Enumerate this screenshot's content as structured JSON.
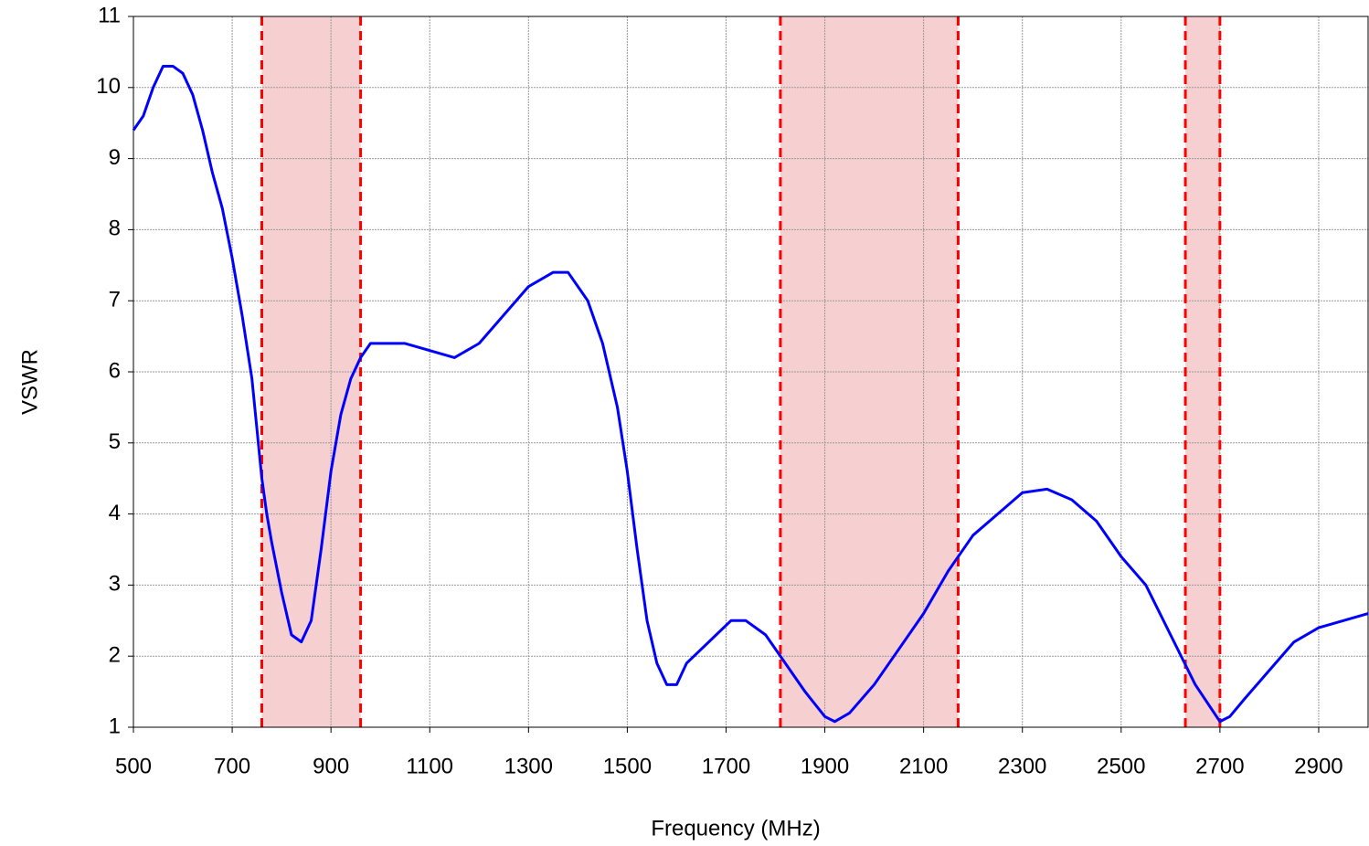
{
  "chart_data": {
    "type": "line",
    "xlabel": "Frequency (MHz)",
    "ylabel": "VSWR",
    "x": [
      500,
      520,
      540,
      560,
      580,
      600,
      620,
      640,
      660,
      680,
      700,
      720,
      740,
      760,
      770,
      780,
      800,
      820,
      840,
      860,
      880,
      900,
      920,
      940,
      960,
      980,
      1000,
      1050,
      1100,
      1150,
      1200,
      1250,
      1300,
      1350,
      1380,
      1420,
      1450,
      1480,
      1500,
      1520,
      1540,
      1560,
      1580,
      1600,
      1620,
      1650,
      1680,
      1710,
      1740,
      1780,
      1820,
      1860,
      1900,
      1920,
      1950,
      2000,
      2050,
      2100,
      2150,
      2200,
      2250,
      2300,
      2350,
      2400,
      2450,
      2500,
      2550,
      2600,
      2650,
      2700,
      2720,
      2750,
      2800,
      2850,
      2900,
      2950,
      3000
    ],
    "series": [
      {
        "name": "VSWR",
        "color": "#0000ff",
        "values": [
          9.4,
          9.6,
          10.0,
          10.3,
          10.3,
          10.2,
          9.9,
          9.4,
          8.8,
          8.3,
          7.6,
          6.8,
          5.9,
          4.5,
          4.0,
          3.6,
          2.9,
          2.3,
          2.2,
          2.5,
          3.5,
          4.6,
          5.4,
          5.9,
          6.2,
          6.4,
          6.4,
          6.4,
          6.3,
          6.2,
          6.4,
          6.8,
          7.2,
          7.4,
          7.4,
          7.0,
          6.4,
          5.5,
          4.6,
          3.5,
          2.5,
          1.9,
          1.6,
          1.6,
          1.9,
          2.1,
          2.3,
          2.5,
          2.5,
          2.3,
          1.9,
          1.5,
          1.15,
          1.08,
          1.2,
          1.6,
          2.1,
          2.6,
          3.2,
          3.7,
          4.0,
          4.3,
          4.35,
          4.2,
          3.9,
          3.4,
          3.0,
          2.3,
          1.6,
          1.08,
          1.15,
          1.4,
          1.8,
          2.2,
          2.4,
          2.5,
          2.6
        ]
      }
    ],
    "bands": [
      [
        760,
        960
      ],
      [
        1810,
        2170
      ],
      [
        2630,
        2700
      ]
    ],
    "band_color": "#f6d0d0",
    "band_edge_color": "#ff0000",
    "xlim": [
      500,
      3000
    ],
    "xticks": [
      500,
      700,
      900,
      1100,
      1300,
      1500,
      1700,
      1900,
      2100,
      2300,
      2500,
      2700,
      2900
    ],
    "ylim": [
      1,
      11
    ],
    "yticks": [
      1,
      2,
      3,
      4,
      5,
      6,
      7,
      8,
      9,
      10,
      11
    ],
    "grid": true
  }
}
